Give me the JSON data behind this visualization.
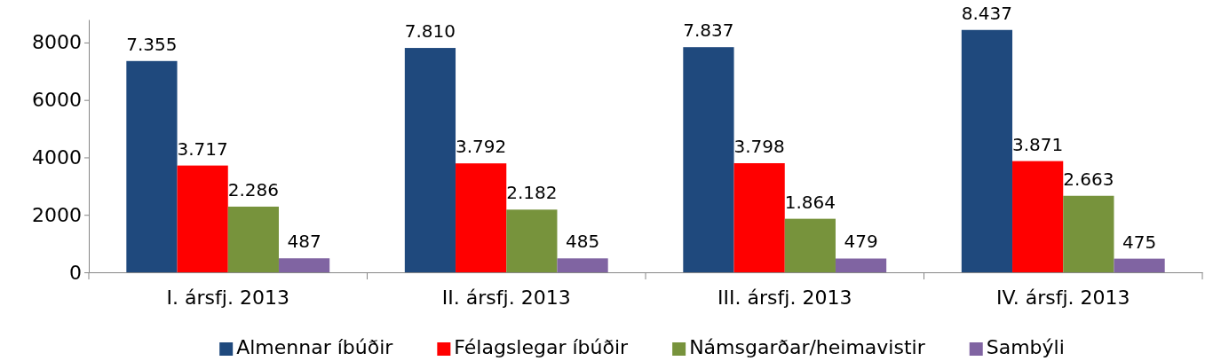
{
  "chart_data": {
    "type": "bar",
    "categories": [
      "I. ársfj. 2013",
      "II. ársfj. 2013",
      "III. ársfj. 2013",
      "IV. ársfj. 2013"
    ],
    "series": [
      {
        "name": "Almennar íbúðir",
        "color": "#1f497d",
        "values": [
          7355,
          7810,
          7837,
          8437
        ],
        "value_labels": [
          "7.355",
          "7.810",
          "7.837",
          "8.437"
        ]
      },
      {
        "name": "Félagslegar íbúðir",
        "color": "#ff0000",
        "values": [
          3717,
          3792,
          3798,
          3871
        ],
        "value_labels": [
          "3.717",
          "3.792",
          "3.798",
          "3.871"
        ]
      },
      {
        "name": "Námsgarðar/heimavistir",
        "color": "#77933c",
        "values": [
          2286,
          2182,
          1864,
          2663
        ],
        "value_labels": [
          "2.286",
          "2.182",
          "1.864",
          "2.663"
        ]
      },
      {
        "name": "Sambýli",
        "color": "#8064a2",
        "values": [
          487,
          485,
          479,
          475
        ],
        "value_labels": [
          "487",
          "485",
          "479",
          "475"
        ]
      }
    ],
    "ylim": [
      0,
      8800
    ],
    "yticks": [
      0,
      2000,
      4000,
      6000,
      8000
    ],
    "grid": false,
    "legend": "bottom"
  }
}
